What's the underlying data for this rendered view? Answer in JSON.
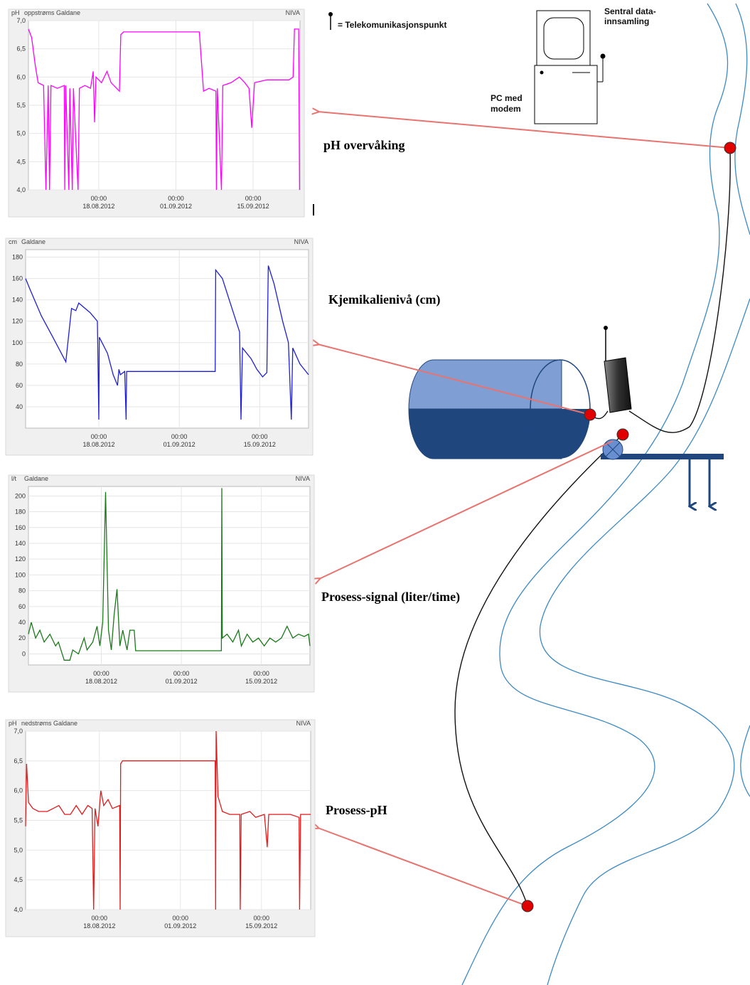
{
  "chart_data": [
    {
      "type": "line",
      "ylabel": "pH",
      "title": "oppstrøms Galdane",
      "source": "NIVA",
      "color": "#ff00ff",
      "grid": true,
      "xlim": [
        "2012-08-05T06:00",
        "2012-09-23T12:00"
      ],
      "xticks": [
        {
          "value": "2012-08-18T00:00",
          "label": [
            "00:00",
            "18.08.2012"
          ]
        },
        {
          "value": "2012-09-01T00:00",
          "label": [
            "00:00",
            "01.09.2012"
          ]
        },
        {
          "value": "2012-09-15T00:00",
          "label": [
            "00:00",
            "15.09.2012"
          ]
        }
      ],
      "ylim": [
        4.0,
        7.0
      ],
      "yticks": [
        {
          "value": 4.0,
          "label": "4,0"
        },
        {
          "value": 4.5,
          "label": "4,5"
        },
        {
          "value": 5.0,
          "label": "5,0"
        },
        {
          "value": 5.5,
          "label": "5,5"
        },
        {
          "value": 6.0,
          "label": "6,0"
        },
        {
          "value": 6.5,
          "label": "6,5"
        },
        {
          "value": 7.0,
          "label": "7,0"
        }
      ],
      "x": [
        "2012-08-05T06:00",
        "2012-08-05T20:00",
        "2012-08-06T12:00",
        "2012-08-07T00:00",
        "2012-08-08T00:00",
        "2012-08-08T10:00",
        "2012-08-08T20:00",
        "2012-08-09T02:00",
        "2012-08-09T08:00",
        "2012-08-10T12:00",
        "2012-08-11T18:00",
        "2012-08-11T20:00",
        "2012-08-12T00:00",
        "2012-08-12T14:00",
        "2012-08-12T18:00",
        "2012-08-13T05:00",
        "2012-08-13T10:00",
        "2012-08-14T06:00",
        "2012-08-14T12:00",
        "2012-08-15T12:00",
        "2012-08-16T12:00",
        "2012-08-17T00:00",
        "2012-08-17T06:00",
        "2012-08-17T12:00",
        "2012-08-18T12:00",
        "2012-08-19T12:00",
        "2012-08-20T06:00",
        "2012-08-21T18:00",
        "2012-08-22T00:00",
        "2012-08-22T12:00",
        "2012-09-05T06:00",
        "2012-09-06T00:00",
        "2012-09-07T00:00",
        "2012-09-08T06:00",
        "2012-09-08T08:00",
        "2012-09-08T12:00",
        "2012-09-09T06:00",
        "2012-09-09T12:00",
        "2012-09-11T00:00",
        "2012-09-12T12:00",
        "2012-09-13T12:00",
        "2012-09-14T06:00",
        "2012-09-14T18:00",
        "2012-09-15T06:00",
        "2012-09-17T12:00",
        "2012-09-19T12:00",
        "2012-09-21T12:00",
        "2012-09-22T06:00",
        "2012-09-22T12:00",
        "2012-09-23T06:00",
        "2012-09-23T10:00"
      ],
      "values": [
        6.85,
        6.7,
        6.2,
        5.9,
        5.85,
        4.0,
        5.85,
        4.0,
        5.85,
        5.8,
        5.85,
        4.0,
        5.85,
        4.0,
        5.8,
        4.0,
        5.8,
        4.0,
        5.8,
        5.85,
        5.8,
        6.1,
        5.2,
        6.0,
        5.9,
        6.1,
        5.9,
        5.75,
        6.75,
        6.8,
        6.8,
        5.75,
        5.8,
        5.75,
        4.0,
        5.8,
        4.0,
        5.85,
        5.9,
        6.0,
        5.9,
        5.8,
        5.1,
        5.9,
        5.95,
        5.95,
        5.95,
        6.0,
        6.85,
        6.85,
        4.0
      ]
    },
    {
      "type": "line",
      "ylabel": "cm",
      "title": "Galdane",
      "source": "NIVA",
      "color": "#1f1fd6",
      "grid": true,
      "xlim": [
        "2012-08-05T06:00",
        "2012-09-23T12:00"
      ],
      "xticks": [
        {
          "value": "2012-08-18T00:00",
          "label": [
            "00:00",
            "18.08.2012"
          ]
        },
        {
          "value": "2012-09-01T00:00",
          "label": [
            "00:00",
            "01.09.2012"
          ]
        },
        {
          "value": "2012-09-15T00:00",
          "label": [
            "00:00",
            "15.09.2012"
          ]
        }
      ],
      "ylim": [
        20,
        187
      ],
      "yticks": [
        40,
        60,
        80,
        100,
        120,
        140,
        160,
        180
      ],
      "x": [
        "2012-08-05T06:00",
        "2012-08-06T00:00",
        "2012-08-08T00:00",
        "2012-08-10T00:00",
        "2012-08-12T06:00",
        "2012-08-13T06:00",
        "2012-08-14T00:00",
        "2012-08-14T12:00",
        "2012-08-16T12:00",
        "2012-08-17T18:00",
        "2012-08-18T00:00",
        "2012-08-18T02:00",
        "2012-08-19T12:00",
        "2012-08-20T12:00",
        "2012-08-21T06:00",
        "2012-08-21T12:00",
        "2012-08-21T18:00",
        "2012-08-22T12:00",
        "2012-08-22T18:00",
        "2012-08-22T20:00",
        "2012-09-07T06:00",
        "2012-09-07T08:00",
        "2012-09-08T12:00",
        "2012-09-10T00:00",
        "2012-09-11T12:00",
        "2012-09-11T18:00",
        "2012-09-12T00:00",
        "2012-09-13T12:00",
        "2012-09-14T12:00",
        "2012-09-15T12:00",
        "2012-09-16T06:00",
        "2012-09-16T12:00",
        "2012-09-17T12:00",
        "2012-09-19T00:00",
        "2012-09-20T00:00",
        "2012-09-20T12:00",
        "2012-09-20T18:00",
        "2012-09-22T00:00",
        "2012-09-23T12:00"
      ],
      "values": [
        160,
        150,
        125,
        105,
        82,
        132,
        130,
        137,
        128,
        120,
        28,
        105,
        90,
        70,
        60,
        75,
        70,
        73,
        28,
        73,
        73,
        168,
        160,
        135,
        110,
        28,
        95,
        85,
        75,
        68,
        72,
        172,
        155,
        120,
        100,
        28,
        95,
        80,
        70
      ]
    },
    {
      "type": "line",
      "ylabel": "l/t",
      "title": "Galdane",
      "source": "NIVA",
      "color": "#1a7a1a",
      "grid": true,
      "xlim": [
        "2012-08-05T06:00",
        "2012-09-23T12:00"
      ],
      "xticks": [
        {
          "value": "2012-08-18T00:00",
          "label": [
            "00:00",
            "18.08.2012"
          ]
        },
        {
          "value": "2012-09-01T00:00",
          "label": [
            "00:00",
            "01.09.2012"
          ]
        },
        {
          "value": "2012-09-15T00:00",
          "label": [
            "00:00",
            "15.09.2012"
          ]
        }
      ],
      "ylim": [
        -14,
        212
      ],
      "yticks": [
        0,
        20,
        40,
        60,
        80,
        100,
        120,
        140,
        160,
        180,
        200
      ],
      "x": [
        "2012-08-05T06:00",
        "2012-08-05T18:00",
        "2012-08-06T12:00",
        "2012-08-07T06:00",
        "2012-08-08T00:00",
        "2012-08-09T00:00",
        "2012-08-10T00:00",
        "2012-08-10T12:00",
        "2012-08-11T12:00",
        "2012-08-12T12:00",
        "2012-08-13T00:00",
        "2012-08-14T00:00",
        "2012-08-15T00:00",
        "2012-08-15T12:00",
        "2012-08-16T12:00",
        "2012-08-17T06:00",
        "2012-08-17T18:00",
        "2012-08-18T06:00",
        "2012-08-18T18:00",
        "2012-08-19T06:00",
        "2012-08-19T18:00",
        "2012-08-20T06:00",
        "2012-08-20T18:00",
        "2012-08-21T06:00",
        "2012-08-21T18:00",
        "2012-08-22T12:00",
        "2012-08-23T00:00",
        "2012-08-23T18:00",
        "2012-08-24T00:00",
        "2012-09-08T00:00",
        "2012-09-08T02:00",
        "2012-09-08T04:00",
        "2012-09-09T00:00",
        "2012-09-10T00:00",
        "2012-09-11T00:00",
        "2012-09-11T12:00",
        "2012-09-12T12:00",
        "2012-09-13T12:00",
        "2012-09-14T12:00",
        "2012-09-15T12:00",
        "2012-09-16T12:00",
        "2012-09-17T12:00",
        "2012-09-18T12:00",
        "2012-09-19T12:00",
        "2012-09-20T12:00",
        "2012-09-21T12:00",
        "2012-09-22T12:00",
        "2012-09-23T06:00",
        "2012-09-23T12:00"
      ],
      "values": [
        25,
        40,
        20,
        30,
        15,
        25,
        10,
        15,
        -8,
        -8,
        5,
        0,
        20,
        5,
        15,
        35,
        10,
        40,
        205,
        30,
        5,
        50,
        82,
        10,
        30,
        5,
        30,
        30,
        4,
        4,
        210,
        20,
        25,
        15,
        30,
        10,
        25,
        15,
        20,
        10,
        20,
        15,
        20,
        35,
        20,
        25,
        22,
        25,
        10
      ]
    },
    {
      "type": "line",
      "ylabel": "pH",
      "title": "nedstrøms Galdane",
      "source": "NIVA",
      "color": "#e31a1a",
      "grid": true,
      "xlim": [
        "2012-08-05T06:00",
        "2012-09-23T12:00"
      ],
      "xticks": [
        {
          "value": "2012-08-18T00:00",
          "label": [
            "00:00",
            "18.08.2012"
          ]
        },
        {
          "value": "2012-09-01T00:00",
          "label": [
            "00:00",
            "01.09.2012"
          ]
        },
        {
          "value": "2012-09-15T00:00",
          "label": [
            "00:00",
            "15.09.2012"
          ]
        }
      ],
      "ylim": [
        4.0,
        7.0
      ],
      "yticks": [
        {
          "value": 4.0,
          "label": "4,0"
        },
        {
          "value": 4.5,
          "label": "4,5"
        },
        {
          "value": 5.0,
          "label": "5,0"
        },
        {
          "value": 5.5,
          "label": "5,5"
        },
        {
          "value": 6.0,
          "label": "6,0"
        },
        {
          "value": 6.5,
          "label": "6,5"
        },
        {
          "value": 7.0,
          "label": "7,0"
        }
      ],
      "x": [
        "2012-08-05T06:00",
        "2012-08-05T10:00",
        "2012-08-05T18:00",
        "2012-08-06T12:00",
        "2012-08-07T12:00",
        "2012-08-09T00:00",
        "2012-08-10T00:00",
        "2012-08-11T00:00",
        "2012-08-12T00:00",
        "2012-08-13T00:00",
        "2012-08-14T00:00",
        "2012-08-15T00:00",
        "2012-08-16T00:00",
        "2012-08-16T18:00",
        "2012-08-17T00:00",
        "2012-08-17T06:00",
        "2012-08-17T18:00",
        "2012-08-18T06:00",
        "2012-08-18T18:00",
        "2012-08-19T12:00",
        "2012-08-20T06:00",
        "2012-08-21T12:00",
        "2012-08-21T14:00",
        "2012-08-21T16:00",
        "2012-08-22T00:00",
        "2012-09-07T00:00",
        "2012-09-07T02:00",
        "2012-09-07T04:00",
        "2012-09-07T12:00",
        "2012-09-08T06:00",
        "2012-09-09T12:00",
        "2012-09-11T06:00",
        "2012-09-11T08:00",
        "2012-09-11T12:00",
        "2012-09-13T00:00",
        "2012-09-14T00:00",
        "2012-09-15T12:00",
        "2012-09-16T00:00",
        "2012-09-16T06:00",
        "2012-09-18T00:00",
        "2012-09-20T00:00",
        "2012-09-21T12:00",
        "2012-09-21T14:00",
        "2012-09-21T18:00",
        "2012-09-23T12:00"
      ],
      "values": [
        5.4,
        6.45,
        5.8,
        5.7,
        5.65,
        5.65,
        5.7,
        5.75,
        5.6,
        5.6,
        5.75,
        5.6,
        5.75,
        5.7,
        4.0,
        5.7,
        5.4,
        6.0,
        5.75,
        5.85,
        5.7,
        5.75,
        4.0,
        6.45,
        6.5,
        6.5,
        4.0,
        7.0,
        5.9,
        5.65,
        5.6,
        5.6,
        4.0,
        5.6,
        5.65,
        5.55,
        5.6,
        5.05,
        5.6,
        5.6,
        5.6,
        5.55,
        4.0,
        5.6,
        5.6
      ]
    }
  ],
  "diagram": {
    "legend": "= Telekomunikasjonspunkt",
    "central": [
      "Sentral data-",
      "innsamling"
    ],
    "pc": [
      "PC med",
      "modem"
    ],
    "labels": [
      "pH overvåking",
      "Kjemikalienivå (cm)",
      "Prosess-signal (liter/time)",
      "Prosess-pH"
    ]
  }
}
